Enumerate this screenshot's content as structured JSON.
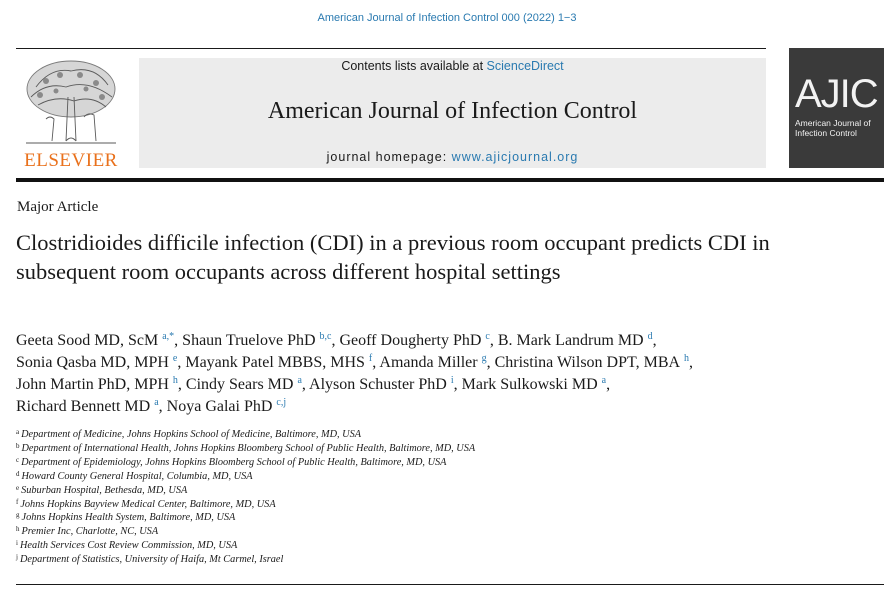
{
  "header": {
    "citation": "American Journal of Infection Control 000 (2022) 1−3"
  },
  "publisher": {
    "name": "ELSEVIER",
    "brand_color": "#e9711c"
  },
  "masthead": {
    "contents_prefix": "Contents lists available at ",
    "contents_link": "ScienceDirect",
    "journal_name": "American Journal of Infection Control",
    "homepage_prefix": "journal homepage: ",
    "homepage_url": "www.ajicjournal.org",
    "link_color": "#2a7ab0"
  },
  "cover": {
    "abbrev": "AJIC",
    "line1": "American Journal of",
    "line2": "Infection Control"
  },
  "article": {
    "type": "Major Article",
    "title": "Clostridioides difficile infection (CDI) in a previous room occupant predicts CDI in subsequent room occupants across different hospital settings",
    "authors": [
      {
        "name": "Geeta Sood MD, ScM",
        "marks": "a,*",
        "sep": ", "
      },
      {
        "name": "Shaun Truelove PhD",
        "marks": "b,c",
        "sep": ", "
      },
      {
        "name": "Geoff Dougherty PhD",
        "marks": "c",
        "sep": ", "
      },
      {
        "name": "B. Mark Landrum MD",
        "marks": "d",
        "sep": ","
      },
      {
        "name": "Sonia Qasba MD, MPH",
        "marks": "e",
        "sep": ", "
      },
      {
        "name": "Mayank Patel MBBS, MHS",
        "marks": "f",
        "sep": ", "
      },
      {
        "name": "Amanda Miller",
        "marks": "g",
        "sep": ", "
      },
      {
        "name": "Christina Wilson DPT, MBA",
        "marks": "h",
        "sep": ","
      },
      {
        "name": "John Martin PhD, MPH",
        "marks": "h",
        "sep": ", "
      },
      {
        "name": "Cindy Sears MD",
        "marks": "a",
        "sep": ", "
      },
      {
        "name": "Alyson Schuster PhD",
        "marks": "i",
        "sep": ", "
      },
      {
        "name": "Mark Sulkowski MD",
        "marks": "a",
        "sep": ","
      },
      {
        "name": "Richard Bennett MD",
        "marks": "a",
        "sep": ", "
      },
      {
        "name": "Noya Galai PhD",
        "marks": "c,j",
        "sep": ""
      }
    ],
    "affiliations": [
      {
        "mark": "a",
        "text": "Department of Medicine, Johns Hopkins School of Medicine, Baltimore, MD, USA"
      },
      {
        "mark": "b",
        "text": "Department of International Health, Johns Hopkins Bloomberg School of Public Health, Baltimore, MD, USA"
      },
      {
        "mark": "c",
        "text": "Department of Epidemiology, Johns Hopkins Bloomberg School of Public Health, Baltimore, MD, USA"
      },
      {
        "mark": "d",
        "text": "Howard County General Hospital, Columbia, MD, USA"
      },
      {
        "mark": "e",
        "text": "Suburban Hospital, Bethesda, MD, USA"
      },
      {
        "mark": "f",
        "text": "Johns Hopkins Bayview Medical Center, Baltimore, MD, USA"
      },
      {
        "mark": "g",
        "text": "Johns Hopkins Health System, Baltimore, MD, USA"
      },
      {
        "mark": "h",
        "text": "Premier Inc, Charlotte, NC, USA"
      },
      {
        "mark": "i",
        "text": "Health Services Cost Review Commission, MD, USA"
      },
      {
        "mark": "j",
        "text": "Department of Statistics, University of Haifa, Mt Carmel, Israel"
      }
    ]
  }
}
